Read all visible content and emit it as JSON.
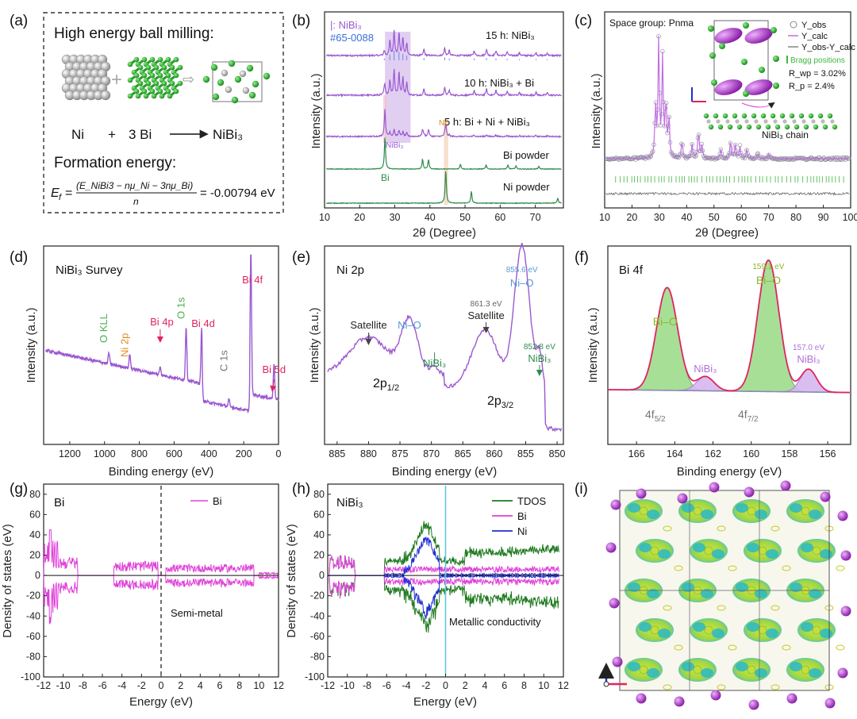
{
  "colors": {
    "purple": "#9b59d0",
    "green": "#2e8b4e",
    "magenta": "#e040d8",
    "darkgreen": "#1f7a1f",
    "blue": "#1f2fd0",
    "red": "#e0245e",
    "orange": "#e08a1e",
    "nigray": "#b8b8b8",
    "bigreen": "#3db83d",
    "cyan": "#5fc8d8",
    "fitfill": "#9fdc8c"
  },
  "panel_labels": [
    "(a)",
    "(b)",
    "(c)",
    "(d)",
    "(e)",
    "(f)",
    "(g)",
    "(h)",
    "(i)"
  ],
  "panel_a": {
    "title": "High energy ball milling:",
    "eq_ni": "Ni",
    "eq_plus": "+",
    "eq_bi": "3 Bi",
    "eq_product": "NiBi₃",
    "formation_title": "Formation energy:",
    "formula_lhs": "E",
    "formula_sub": "f",
    "formula_num": "(E_NiBi3 − nμ_Ni − 3nμ_Bi)",
    "formula_den": "n",
    "formula_value": "= -0.00794 eV"
  },
  "chart_data": [
    {
      "panel": "b",
      "type": "line",
      "xlabel": "2θ (Degree)",
      "ylabel": "Intensity (a.u.)",
      "xlim": [
        10,
        78
      ],
      "xticks": [
        "10",
        "20",
        "30",
        "40",
        "50",
        "60",
        "70"
      ],
      "legend": [
        "|: NiBi₃",
        "#65-0088"
      ],
      "series": [
        {
          "name": "15 h: NiBi₃",
          "color": "purple"
        },
        {
          "name": "10 h: NiBi₃ + Bi",
          "color": "purple"
        },
        {
          "name": "5 h: Bi + Ni + NiBi₃",
          "color": "purple"
        },
        {
          "name": "Bi powder",
          "color": "green"
        },
        {
          "name": "Ni powder",
          "color": "green"
        }
      ],
      "annotations": [
        "NiBi₃",
        "Ni",
        "Bi"
      ]
    },
    {
      "panel": "c",
      "type": "scatter",
      "title": "Space group: Pnma",
      "xlabel": "2θ (Degree)",
      "ylabel": "Intensity (a.u.)",
      "xlim": [
        10,
        100
      ],
      "xticks": [
        "10",
        "20",
        "30",
        "40",
        "50",
        "60",
        "70",
        "80",
        "90",
        "100"
      ],
      "legend": [
        "Y_obs",
        "Y_calc",
        "Y_obs-Y_calc",
        "Bragg positions"
      ],
      "stats": [
        "R_wp = 3.02%",
        "R_p = 2.4%"
      ],
      "inset_label": "NiBi₃ chain"
    },
    {
      "panel": "d",
      "type": "line",
      "title": "NiBi₃ Survey",
      "xlabel": "Binding energy (eV)",
      "ylabel": "Intensity (a.u.)",
      "xlim": [
        1350,
        0
      ],
      "xticks": [
        "1200",
        "1000",
        "800",
        "600",
        "400",
        "200",
        "0"
      ],
      "peaks": [
        {
          "label": "O KLL",
          "x": 975
        },
        {
          "label": "Ni 2p",
          "x": 855
        },
        {
          "label": "Bi 4p",
          "x": 680
        },
        {
          "label": "O 1s",
          "x": 531
        },
        {
          "label": "Bi 4d",
          "x": 442
        },
        {
          "label": "C 1s",
          "x": 285
        },
        {
          "label": "Bi 4f",
          "x": 159
        },
        {
          "label": "Bi 5d",
          "x": 26
        }
      ]
    },
    {
      "panel": "e",
      "type": "line",
      "title": "Ni 2p",
      "xlabel": "Binding energy (eV)",
      "ylabel": "Intensity (a.u.)",
      "xlim": [
        887,
        849
      ],
      "xticks": [
        "885",
        "880",
        "875",
        "870",
        "865",
        "860",
        "855",
        "850"
      ],
      "annotations": [
        {
          "label": "Satellite",
          "x": 880
        },
        {
          "label": "Ni–O",
          "x": 873.5
        },
        {
          "label": "NiBi₃",
          "x": 869.5
        },
        {
          "label": "861.3 eV",
          "x": 861.3
        },
        {
          "label": "Satellite",
          "x": 861.3
        },
        {
          "label": "855.6 eV",
          "x": 855.6
        },
        {
          "label": "Ni–O",
          "x": 855.6
        },
        {
          "label": "852.8 eV",
          "x": 852.8
        },
        {
          "label": "NiBi₃",
          "x": 852.8
        }
      ],
      "orbitals": [
        "2p1/2",
        "2p3/2"
      ]
    },
    {
      "panel": "f",
      "type": "area",
      "title": "Bi 4f",
      "xlabel": "Binding energy (eV)",
      "ylabel": "Intensity (a.u.)",
      "xlim": [
        167.5,
        154.8
      ],
      "xticks": [
        "166",
        "164",
        "162",
        "160",
        "158",
        "156"
      ],
      "components": [
        {
          "label": "Bi–O",
          "center": 164.4,
          "height": 0.72
        },
        {
          "label": "NiBi₃",
          "center": 162.4,
          "height": 0.1
        },
        {
          "label": "Bi–O",
          "center": 159.1,
          "height": 0.92
        },
        {
          "label": "NiBi₃",
          "center": 157.0,
          "height": 0.16
        }
      ],
      "value_labels": [
        "159.1 eV",
        "157.0 eV"
      ],
      "orbitals": [
        "4f5/2",
        "4f7/2"
      ]
    },
    {
      "panel": "g",
      "type": "line",
      "title": "Bi",
      "xlabel": "Energy (eV)",
      "ylabel": "Density of states (eV)",
      "xlim": [
        -12,
        12
      ],
      "ylim": [
        -100,
        90
      ],
      "xticks": [
        "-12",
        "-10",
        "-8",
        "-6",
        "-4",
        "-2",
        "0",
        "2",
        "4",
        "6",
        "8",
        "10",
        "12"
      ],
      "yticks": [
        "80",
        "60",
        "40",
        "20",
        "0",
        "-20",
        "-40",
        "-60",
        "-80",
        "-100"
      ],
      "legend": [
        "Bi"
      ],
      "annotation": "Semi-metal"
    },
    {
      "panel": "h",
      "type": "line",
      "title": "NiBi₃",
      "xlabel": "Energy (eV)",
      "ylabel": "Density of states (eV)",
      "xlim": [
        -12,
        12
      ],
      "ylim": [
        -100,
        90
      ],
      "xticks": [
        "-12",
        "-10",
        "-8",
        "-6",
        "-4",
        "-2",
        "0",
        "2",
        "4",
        "6",
        "8",
        "10",
        "12"
      ],
      "yticks": [
        "80",
        "60",
        "40",
        "20",
        "0",
        "-20",
        "-40",
        "-60",
        "-80",
        "-100"
      ],
      "legend": [
        "TDOS",
        "Bi",
        "Ni"
      ],
      "annotation": "Metallic conductivity"
    }
  ]
}
